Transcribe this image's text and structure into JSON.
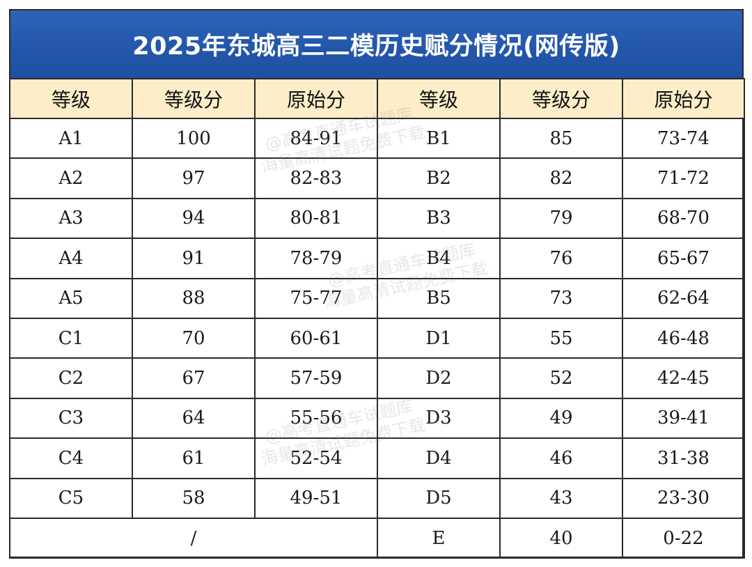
{
  "title": "2025年东城高三二模历史赋分情况(网传版)",
  "headers": [
    "等级",
    "等级分",
    "原始分",
    "等级",
    "等级分",
    "原始分"
  ],
  "rows": [
    [
      "A1",
      "100",
      "84-91",
      "B1",
      "85",
      "73-74"
    ],
    [
      "A2",
      "97",
      "82-83",
      "B2",
      "82",
      "71-72"
    ],
    [
      "A3",
      "94",
      "80-81",
      "B3",
      "79",
      "68-70"
    ],
    [
      "A4",
      "91",
      "78-79",
      "B4",
      "76",
      "65-67"
    ],
    [
      "A5",
      "88",
      "75-77",
      "B5",
      "73",
      "62-64"
    ],
    [
      "C1",
      "70",
      "60-61",
      "D1",
      "55",
      "46-48"
    ],
    [
      "C2",
      "67",
      "57-59",
      "D2",
      "52",
      "42-45"
    ],
    [
      "C3",
      "64",
      "55-56",
      "D3",
      "49",
      "39-41"
    ],
    [
      "C4",
      "61",
      "52-54",
      "D4",
      "46",
      "31-38"
    ],
    [
      "C5",
      "58",
      "49-51",
      "D5",
      "43",
      "23-30"
    ]
  ],
  "last_row": {
    "merged": "/",
    "grade": "E",
    "score": "40",
    "raw": "0-22"
  },
  "watermark": {
    "line1": "@高考直通车试题库",
    "line2": "海量高清试题免费下载"
  },
  "colors": {
    "title_bg": "#2458ad",
    "header_bg": "#fdeec9"
  }
}
